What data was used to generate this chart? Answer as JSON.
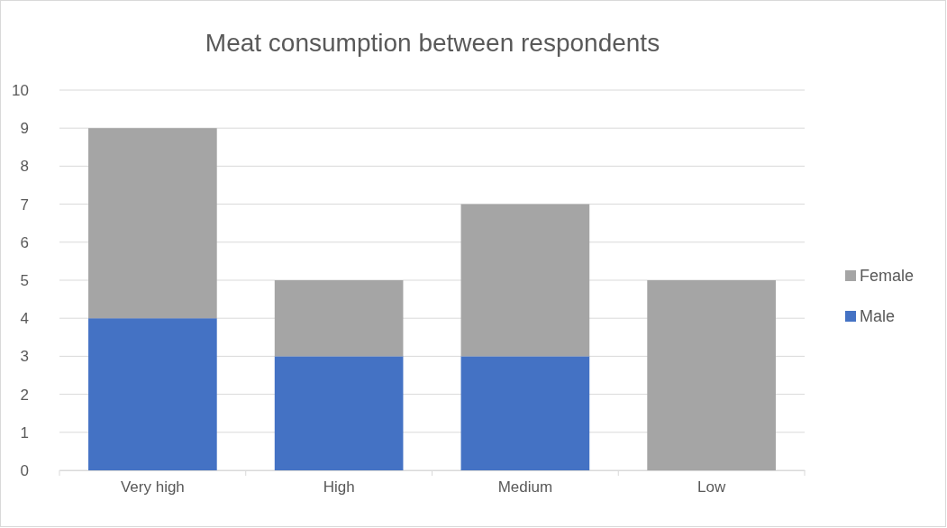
{
  "chart_data": {
    "type": "bar",
    "title": "Meat consumption between respondents",
    "categories": [
      "Very high",
      "High",
      "Medium",
      "Low"
    ],
    "series": [
      {
        "name": "Male",
        "color": "#4472c4",
        "values": [
          4,
          3,
          3,
          0
        ]
      },
      {
        "name": "Female",
        "color": "#a5a5a5",
        "values": [
          5,
          2,
          4,
          5
        ]
      }
    ],
    "stacked": true,
    "ylim": [
      0,
      10
    ],
    "yticks": [
      0,
      1,
      2,
      3,
      4,
      5,
      6,
      7,
      8,
      9,
      10
    ],
    "grid": "y",
    "legend": "right"
  }
}
